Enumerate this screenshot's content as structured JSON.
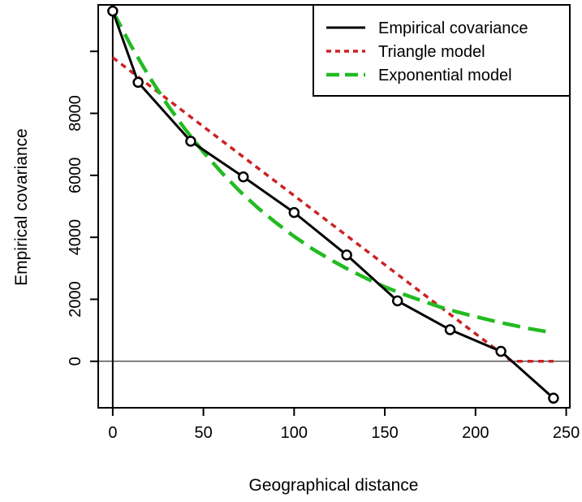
{
  "chart_data": {
    "type": "line",
    "title": "",
    "xlabel": "Geographical distance",
    "ylabel": "Empirical covariance",
    "xlim": [
      -8,
      252
    ],
    "ylim": [
      -1500,
      11500
    ],
    "x_ticks": [
      0,
      50,
      100,
      150,
      200,
      250
    ],
    "y_ticks": [
      0,
      2000,
      4000,
      6000,
      8000
    ],
    "legend_position": "top-right",
    "reference_lines": {
      "vertical_x": 0,
      "horizontal_y": 0
    },
    "series": [
      {
        "name": "Empirical covariance",
        "style": "solid",
        "color": "#000000",
        "markers": "open-circle",
        "x": [
          0,
          14,
          43,
          72,
          100,
          129,
          157,
          186,
          214,
          243
        ],
        "y": [
          11300,
          9000,
          7100,
          5950,
          4800,
          3430,
          1950,
          1020,
          320,
          -1190
        ]
      },
      {
        "name": "Triangle model",
        "style": "dotted",
        "color": "#cc2222",
        "x": [
          0,
          220,
          243
        ],
        "y": [
          9800,
          0,
          0
        ]
      },
      {
        "name": "Exponential model",
        "style": "dashed",
        "color": "#22bb22",
        "x": [
          0,
          10,
          20,
          30,
          40,
          50,
          60,
          70,
          80,
          90,
          100,
          110,
          120,
          130,
          140,
          150,
          160,
          170,
          180,
          190,
          200,
          210,
          220,
          230,
          243
        ],
        "y": [
          11300,
          10190,
          9190,
          8290,
          7480,
          6750,
          6090,
          5490,
          4950,
          4470,
          4030,
          3630,
          3280,
          2960,
          2670,
          2400,
          2170,
          1960,
          1760,
          1590,
          1440,
          1300,
          1170,
          1050,
          920
        ]
      }
    ]
  }
}
